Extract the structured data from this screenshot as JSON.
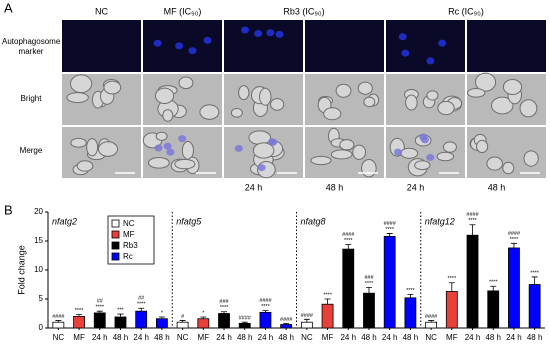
{
  "panel_a": {
    "label": "A",
    "columns": [
      "NC",
      "MF (IC₉₀)",
      "Rb3 (IC₉₀)",
      "Rc (IC₉₀)"
    ],
    "rows": [
      "Autophagosome marker",
      "Bright",
      "Merge"
    ],
    "times": [
      "24 h",
      "48 h",
      "24 h",
      "48 h"
    ]
  },
  "panel_b": {
    "label": "B",
    "ylabel": "Fold change",
    "legend": [
      {
        "name": "NC",
        "color": "#ffffff"
      },
      {
        "name": "MF",
        "color": "#e8413c"
      },
      {
        "name": "Rb3",
        "color": "#000000"
      },
      {
        "name": "Rc",
        "color": "#0000ff"
      }
    ]
  },
  "chart_data": [
    {
      "type": "bar",
      "title": "nfatg2",
      "categories": [
        "NC",
        "MF",
        "24 h",
        "48 h",
        "24 h",
        "48 h"
      ],
      "values": [
        1.0,
        2.0,
        2.6,
        1.9,
        2.9,
        1.6
      ],
      "errors": [
        0.3,
        0.3,
        0.3,
        0.5,
        0.5,
        0.3
      ],
      "colors": [
        "#ffffff",
        "#e8413c",
        "#000000",
        "#000000",
        "#0000ff",
        "#0000ff"
      ],
      "annotations": [
        [
          "####"
        ],
        [
          "****"
        ],
        [
          "##",
          "****"
        ],
        [
          "***"
        ],
        [
          "##",
          "****"
        ],
        [
          "*"
        ]
      ],
      "ylim": [
        0,
        20
      ],
      "yticks": [
        0,
        5,
        10,
        15,
        20
      ]
    },
    {
      "type": "bar",
      "title": "nfatg5",
      "categories": [
        "NC",
        "MF",
        "24 h",
        "48 h",
        "24 h",
        "48 h"
      ],
      "values": [
        1.0,
        1.6,
        2.5,
        0.8,
        2.7,
        0.6
      ],
      "errors": [
        0.3,
        0.3,
        0.3,
        0.2,
        0.3,
        0.2
      ],
      "colors": [
        "#ffffff",
        "#e8413c",
        "#000000",
        "#000000",
        "#0000ff",
        "#0000ff"
      ],
      "annotations": [
        [
          "#"
        ],
        [
          "*"
        ],
        [
          "###",
          "****"
        ],
        [
          "####"
        ],
        [
          "####",
          "****"
        ],
        [
          "####"
        ]
      ],
      "ylim": [
        0,
        20
      ]
    },
    {
      "type": "bar",
      "title": "nfatg8",
      "categories": [
        "NC",
        "MF",
        "24 h",
        "48 h",
        "24 h",
        "48 h"
      ],
      "values": [
        1.0,
        4.1,
        13.6,
        6.0,
        15.8,
        5.2
      ],
      "errors": [
        0.5,
        0.9,
        0.8,
        1.0,
        0.5,
        0.6
      ],
      "colors": [
        "#ffffff",
        "#e8413c",
        "#000000",
        "#000000",
        "#0000ff",
        "#0000ff"
      ],
      "annotations": [
        [
          "####"
        ],
        [
          "****"
        ],
        [
          "####",
          "****"
        ],
        [
          "###",
          "****"
        ],
        [
          "####",
          "****"
        ],
        [
          "****"
        ]
      ],
      "ylim": [
        0,
        20
      ]
    },
    {
      "type": "bar",
      "title": "nfatg12",
      "categories": [
        "NC",
        "MF",
        "24 h",
        "48 h",
        "24 h",
        "48 h"
      ],
      "values": [
        1.0,
        6.3,
        16.0,
        6.4,
        13.8,
        7.5
      ],
      "errors": [
        0.3,
        1.5,
        1.8,
        0.8,
        0.8,
        1.3
      ],
      "colors": [
        "#ffffff",
        "#e8413c",
        "#000000",
        "#000000",
        "#0000ff",
        "#0000ff"
      ],
      "annotations": [
        [
          "####"
        ],
        [
          "****"
        ],
        [
          "####",
          "****"
        ],
        [
          "****"
        ],
        [
          "####",
          "****"
        ],
        [
          "****"
        ]
      ],
      "ylim": [
        0,
        20
      ]
    }
  ]
}
